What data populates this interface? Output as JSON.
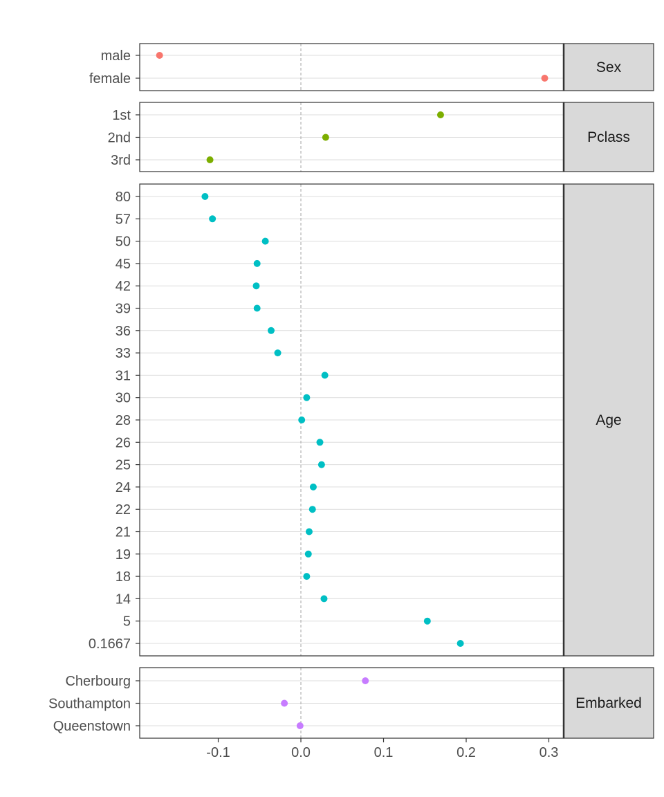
{
  "chart_data": {
    "type": "scatter",
    "layout": "faceted-dot-plot",
    "xlim": [
      -0.195,
      0.318
    ],
    "x_ticks": [
      -0.1,
      0.0,
      0.1,
      0.2,
      0.3
    ],
    "x_tick_labels": [
      "-0.1",
      "0.0",
      "0.1",
      "0.2",
      "0.3"
    ],
    "reference_line_x": 0,
    "grid": "horizontal-major",
    "facets": [
      {
        "strip": "Sex",
        "color": "#F8766D",
        "points": [
          {
            "label": "male",
            "x": -0.171
          },
          {
            "label": "female",
            "x": 0.295
          }
        ]
      },
      {
        "strip": "Pclass",
        "color": "#7CAE00",
        "points": [
          {
            "label": "1st",
            "x": 0.169
          },
          {
            "label": "2nd",
            "x": 0.03
          },
          {
            "label": "3rd",
            "x": -0.11
          }
        ]
      },
      {
        "strip": "Age",
        "color": "#00BFC4",
        "points": [
          {
            "label": "80",
            "x": -0.116
          },
          {
            "label": "57",
            "x": -0.107
          },
          {
            "label": "50",
            "x": -0.043
          },
          {
            "label": "45",
            "x": -0.053
          },
          {
            "label": "42",
            "x": -0.054
          },
          {
            "label": "39",
            "x": -0.053
          },
          {
            "label": "36",
            "x": -0.036
          },
          {
            "label": "33",
            "x": -0.028
          },
          {
            "label": "31",
            "x": 0.029
          },
          {
            "label": "30",
            "x": 0.007
          },
          {
            "label": "28",
            "x": 0.001
          },
          {
            "label": "26",
            "x": 0.023
          },
          {
            "label": "25",
            "x": 0.025
          },
          {
            "label": "24",
            "x": 0.015
          },
          {
            "label": "22",
            "x": 0.014
          },
          {
            "label": "21",
            "x": 0.01
          },
          {
            "label": "19",
            "x": 0.009
          },
          {
            "label": "18",
            "x": 0.007
          },
          {
            "label": "14",
            "x": 0.028
          },
          {
            "label": "5",
            "x": 0.153
          },
          {
            "label": "0.1667",
            "x": 0.193
          }
        ]
      },
      {
        "strip": "Embarked",
        "color": "#C77CFF",
        "points": [
          {
            "label": "Cherbourg",
            "x": 0.078
          },
          {
            "label": "Southampton",
            "x": -0.02
          },
          {
            "label": "Queenstown",
            "x": -0.001
          }
        ]
      }
    ]
  }
}
